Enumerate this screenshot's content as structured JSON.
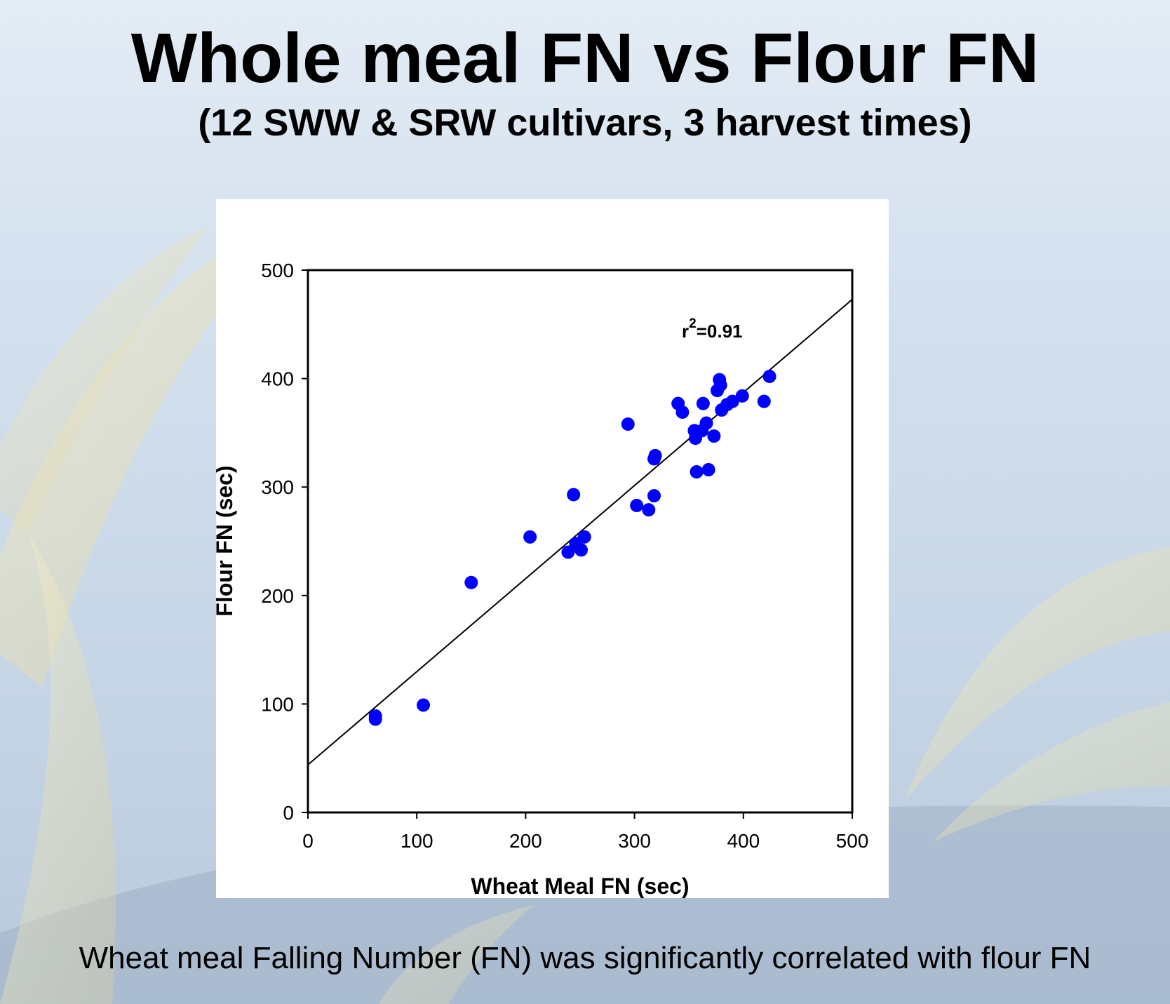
{
  "slide": {
    "title": "Whole meal FN vs Flour FN",
    "subtitle": "(12 SWW & SRW cultivars, 3 harvest times)",
    "caption": "Wheat meal Falling Number (FN) was significantly correlated with flour FN"
  },
  "colors": {
    "point": "#0000ff",
    "line": "#000000",
    "panel": "#ffffff"
  },
  "chart_data": {
    "type": "scatter",
    "xlabel": "Wheat Meal FN (sec)",
    "ylabel": "Flour FN (sec)",
    "xlim": [
      0,
      500
    ],
    "ylim": [
      0,
      500
    ],
    "xticks": [
      0,
      100,
      200,
      300,
      400,
      500
    ],
    "yticks": [
      0,
      100,
      200,
      300,
      400,
      500
    ],
    "grid": false,
    "annotation": {
      "base": "r",
      "sup": "2",
      "rest": "=0.91"
    },
    "trendline": {
      "x": [
        0,
        500
      ],
      "y": [
        44,
        473
      ]
    },
    "points": [
      {
        "x": 62,
        "y": 89
      },
      {
        "x": 62,
        "y": 86
      },
      {
        "x": 106,
        "y": 99
      },
      {
        "x": 150,
        "y": 212
      },
      {
        "x": 204,
        "y": 254
      },
      {
        "x": 239,
        "y": 240
      },
      {
        "x": 244,
        "y": 293
      },
      {
        "x": 246,
        "y": 248
      },
      {
        "x": 251,
        "y": 242
      },
      {
        "x": 254,
        "y": 254
      },
      {
        "x": 294,
        "y": 358
      },
      {
        "x": 302,
        "y": 283
      },
      {
        "x": 313,
        "y": 279
      },
      {
        "x": 318,
        "y": 292
      },
      {
        "x": 318,
        "y": 326
      },
      {
        "x": 319,
        "y": 329
      },
      {
        "x": 340,
        "y": 377
      },
      {
        "x": 344,
        "y": 369
      },
      {
        "x": 355,
        "y": 352
      },
      {
        "x": 356,
        "y": 345
      },
      {
        "x": 357,
        "y": 314
      },
      {
        "x": 362,
        "y": 352
      },
      {
        "x": 363,
        "y": 377
      },
      {
        "x": 366,
        "y": 359
      },
      {
        "x": 368,
        "y": 316
      },
      {
        "x": 373,
        "y": 347
      },
      {
        "x": 376,
        "y": 389
      },
      {
        "x": 378,
        "y": 399
      },
      {
        "x": 379,
        "y": 394
      },
      {
        "x": 380,
        "y": 371
      },
      {
        "x": 385,
        "y": 376
      },
      {
        "x": 390,
        "y": 379
      },
      {
        "x": 399,
        "y": 384
      },
      {
        "x": 419,
        "y": 379
      },
      {
        "x": 424,
        "y": 402
      }
    ]
  }
}
